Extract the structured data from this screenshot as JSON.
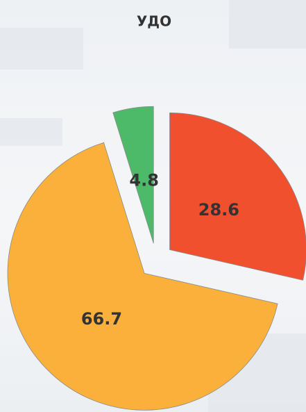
{
  "chart_data": {
    "type": "pie",
    "title": "УДО",
    "values": [
      28.6,
      66.7,
      4.8
    ],
    "colors": [
      "#f0502e",
      "#fbb03b",
      "#4dba6a"
    ]
  }
}
